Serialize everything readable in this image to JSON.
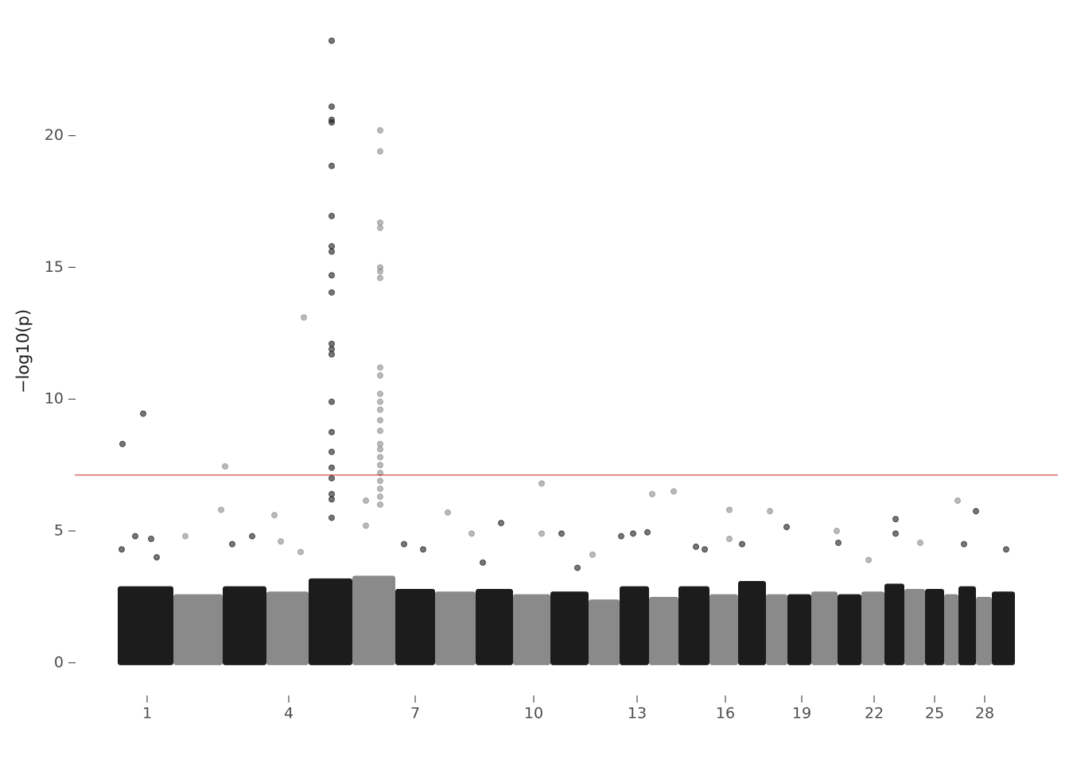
{
  "chart_data": {
    "type": "manhattan",
    "y_label": "−log10(p)",
    "xlim": [
      -54,
      1182
    ],
    "ylim": [
      -1,
      24
    ],
    "yticks": [
      0,
      5,
      10,
      15,
      20
    ],
    "xticks": [
      {
        "value": 37,
        "label": "1"
      },
      {
        "value": 215,
        "label": "4"
      },
      {
        "value": 374,
        "label": "7"
      },
      {
        "value": 523,
        "label": "10"
      },
      {
        "value": 653,
        "label": "13"
      },
      {
        "value": 764,
        "label": "16"
      },
      {
        "value": 860,
        "label": "19"
      },
      {
        "value": 951,
        "label": "22"
      },
      {
        "value": 1027,
        "label": "25"
      },
      {
        "value": 1090,
        "label": "28"
      }
    ],
    "chromosome_bounds": [
      0,
      70,
      132,
      187,
      240,
      295,
      349,
      399,
      450,
      497,
      544,
      592,
      631,
      668,
      705,
      744,
      780,
      815,
      842,
      872,
      905,
      935,
      964,
      989,
      1015,
      1039,
      1057,
      1079,
      1099,
      1128
    ],
    "chromosome_bulk": [
      2.9,
      2.6,
      2.9,
      2.7,
      3.2,
      3.3,
      2.8,
      2.7,
      2.8,
      2.6,
      2.7,
      2.4,
      2.9,
      2.5,
      2.9,
      2.6,
      3.1,
      2.6,
      2.6,
      2.7,
      2.6,
      2.7,
      3,
      2.8,
      2.8,
      2.6,
      2.9,
      2.5,
      2.7
    ],
    "band_colors": [
      "#1c1c1c",
      "#8a8a8a"
    ],
    "threshold": 7.12,
    "threshold_color": "#cc2222",
    "series": [
      {
        "name": "odd",
        "color": "#1a1a1a",
        "x": [
          6,
          32,
          5,
          22,
          42,
          49,
          144,
          169,
          269,
          269,
          269,
          269,
          269,
          269,
          269,
          269,
          269,
          269,
          269,
          269,
          269,
          269,
          269,
          269,
          269,
          269,
          269,
          269,
          269,
          360,
          384,
          459,
          482,
          558,
          578,
          633,
          648,
          666,
          727,
          738,
          785,
          841,
          906,
          978,
          978,
          1064,
          1079,
          1117
        ],
        "values": [
          8.3,
          9.45,
          4.3,
          4.8,
          4.7,
          4,
          4.5,
          4.8,
          23.6,
          21.1,
          20.6,
          20.5,
          18.85,
          16.95,
          15.8,
          15.6,
          14.7,
          14.05,
          12.1,
          11.9,
          11.7,
          9.9,
          8.75,
          8,
          7.4,
          7,
          6.4,
          6.2,
          5.5,
          4.5,
          4.3,
          3.8,
          5.3,
          4.9,
          3.6,
          4.8,
          4.9,
          4.95,
          4.4,
          4.3,
          4.5,
          5.15,
          4.55,
          5.45,
          4.9,
          4.5,
          5.75,
          4.3
        ]
      },
      {
        "name": "even",
        "color": "#8c8c8c",
        "x": [
          85,
          130,
          135,
          197,
          205,
          230,
          234,
          312,
          312,
          330,
          330,
          330,
          330,
          330,
          330,
          330,
          330,
          330,
          330,
          330,
          330,
          330,
          330,
          330,
          330,
          330,
          330,
          330,
          330,
          330,
          330,
          330,
          415,
          445,
          533,
          533,
          597,
          672,
          699,
          769,
          769,
          820,
          904,
          944,
          1009,
          1056
        ],
        "values": [
          4.8,
          5.8,
          7.45,
          5.6,
          4.6,
          4.2,
          13.1,
          6.15,
          5.2,
          20.2,
          19.4,
          16.7,
          16.5,
          15,
          14.85,
          14.6,
          11.2,
          10.9,
          10.2,
          9.9,
          9.6,
          9.2,
          8.8,
          8.3,
          8.1,
          7.8,
          7.5,
          7.2,
          6.9,
          6.6,
          6.3,
          6,
          5.7,
          4.9,
          6.8,
          4.9,
          4.1,
          6.4,
          6.5,
          5.8,
          4.7,
          5.75,
          5,
          3.9,
          4.55,
          6.15
        ]
      }
    ]
  }
}
